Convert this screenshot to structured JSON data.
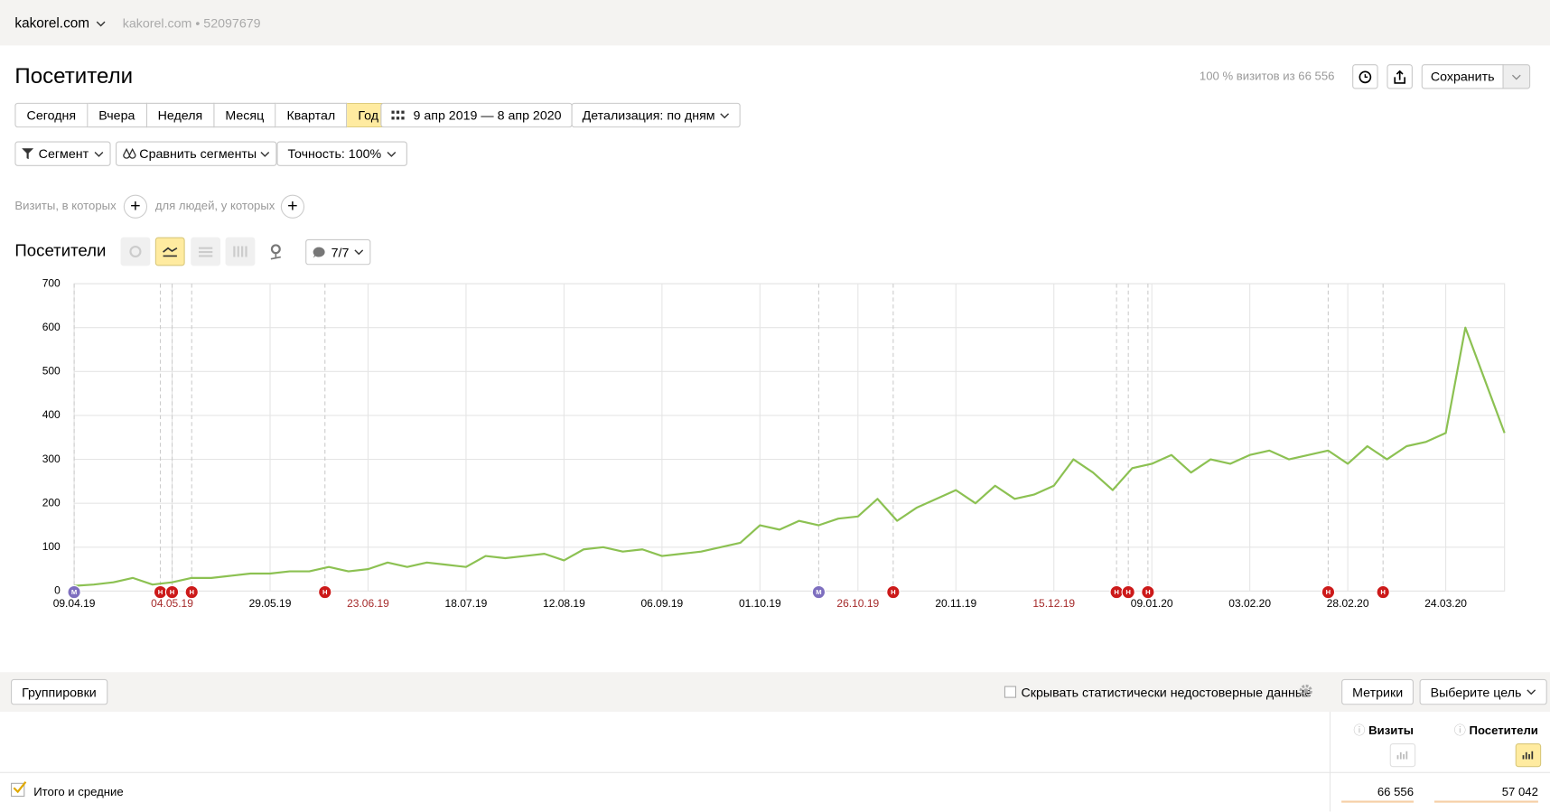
{
  "header": {
    "site": "kakorel.com",
    "site_id": "kakorel.com • 52097679"
  },
  "page": {
    "title": "Посетители",
    "sample": "100 % визитов из 66 556",
    "save": "Сохранить"
  },
  "periods": [
    "Сегодня",
    "Вчера",
    "Неделя",
    "Месяц",
    "Квартал",
    "Год"
  ],
  "active_period": 5,
  "date_range": "9 апр 2019 — 8 апр 2020",
  "detail": "Детализация: по дням",
  "filters": {
    "segment": "Сегмент",
    "compare": "Сравнить сегменты",
    "accuracy": "Точность: 100%"
  },
  "conditions": {
    "visits": "Визиты, в которых",
    "people": "для людей, у которых"
  },
  "chart_data": {
    "type": "line",
    "title": "Посетители",
    "notes_button": "7/7",
    "color": "#8cc152",
    "grid": true,
    "x": [
      "09.04.19",
      "14.04.19",
      "19.04.19",
      "24.04.19",
      "29.04.19",
      "04.05.19",
      "09.05.19",
      "14.05.19",
      "19.05.19",
      "24.05.19",
      "29.05.19",
      "03.06.19",
      "08.06.19",
      "13.06.19",
      "18.06.19",
      "23.06.19",
      "28.06.19",
      "03.07.19",
      "08.07.19",
      "13.07.19",
      "18.07.19",
      "23.07.19",
      "28.07.19",
      "02.08.19",
      "07.08.19",
      "12.08.19",
      "17.08.19",
      "22.08.19",
      "27.08.19",
      "01.09.19",
      "06.09.19",
      "11.09.19",
      "16.09.19",
      "21.09.19",
      "26.09.19",
      "01.10.19",
      "06.10.19",
      "11.10.19",
      "16.10.19",
      "21.10.19",
      "26.10.19",
      "31.10.19",
      "05.11.19",
      "10.11.19",
      "15.11.19",
      "20.11.19",
      "25.11.19",
      "30.11.19",
      "05.12.19",
      "10.12.19",
      "15.12.19",
      "20.12.19",
      "25.12.19",
      "30.12.19",
      "04.01.20",
      "09.01.20",
      "14.01.20",
      "19.01.20",
      "24.01.20",
      "29.01.20",
      "03.02.20",
      "08.02.20",
      "13.02.20",
      "18.02.20",
      "23.02.20",
      "28.02.20",
      "04.03.20",
      "09.03.20",
      "14.03.20",
      "19.03.20",
      "24.03.20",
      "29.03.20",
      "03.04.20",
      "08.04.20"
    ],
    "values": [
      12,
      15,
      20,
      30,
      15,
      20,
      30,
      30,
      35,
      40,
      40,
      45,
      45,
      55,
      45,
      50,
      65,
      55,
      65,
      60,
      55,
      80,
      75,
      80,
      85,
      70,
      95,
      100,
      90,
      95,
      80,
      85,
      90,
      100,
      110,
      150,
      140,
      160,
      150,
      165,
      170,
      210,
      160,
      190,
      210,
      230,
      200,
      240,
      210,
      220,
      240,
      300,
      270,
      230,
      280,
      290,
      310,
      270,
      300,
      290,
      310,
      320,
      300,
      310,
      320,
      290,
      330,
      300,
      330,
      340,
      360,
      600,
      480,
      360
    ],
    "xlim": [
      "09.04.19",
      "08.04.20"
    ],
    "ylim": [
      0,
      700
    ],
    "yticks": [
      0,
      100,
      200,
      300,
      400,
      500,
      600,
      700
    ],
    "xticks": [
      "09.04.19",
      "04.05.19",
      "29.05.19",
      "23.06.19",
      "18.07.19",
      "12.08.19",
      "06.09.19",
      "01.10.19",
      "26.10.19",
      "20.11.19",
      "15.12.19",
      "09.01.20",
      "03.02.20",
      "28.02.20",
      "24.03.20"
    ],
    "holiday_ticks": [
      "04.05.19",
      "23.06.19",
      "26.10.19",
      "15.12.19"
    ],
    "holiday_color": "#a52a2a",
    "annotations": [
      {
        "date": "09.04.19",
        "label": "М",
        "color": "#7e6fbf"
      },
      {
        "date": "01.05.19",
        "label": "Н",
        "color": "#cc1a1a"
      },
      {
        "date": "04.05.19",
        "label": "Н",
        "color": "#cc1a1a"
      },
      {
        "date": "09.05.19",
        "label": "Н",
        "color": "#cc1a1a"
      },
      {
        "date": "12.06.19",
        "label": "Н",
        "color": "#cc1a1a"
      },
      {
        "date": "16.10.19",
        "label": "М",
        "color": "#7e6fbf"
      },
      {
        "date": "04.11.19",
        "label": "Н",
        "color": "#cc1a1a"
      },
      {
        "date": "31.12.19",
        "label": "Н",
        "color": "#cc1a1a"
      },
      {
        "date": "03.01.20",
        "label": "Н",
        "color": "#cc1a1a"
      },
      {
        "date": "08.01.20",
        "label": "Н",
        "color": "#cc1a1a"
      },
      {
        "date": "23.02.20",
        "label": "Н",
        "color": "#cc1a1a"
      },
      {
        "date": "08.03.20",
        "label": "Н",
        "color": "#cc1a1a"
      }
    ]
  },
  "toolbar": {
    "groupings": "Группировки",
    "hide": "Скрывать статистически недостоверные данные",
    "metrics": "Метрики",
    "goal": "Выберите цель"
  },
  "table": {
    "columns": [
      "Визиты",
      "Посетители"
    ],
    "rows": [
      [
        "Итого и средние",
        "66 556",
        "57 042"
      ]
    ]
  }
}
